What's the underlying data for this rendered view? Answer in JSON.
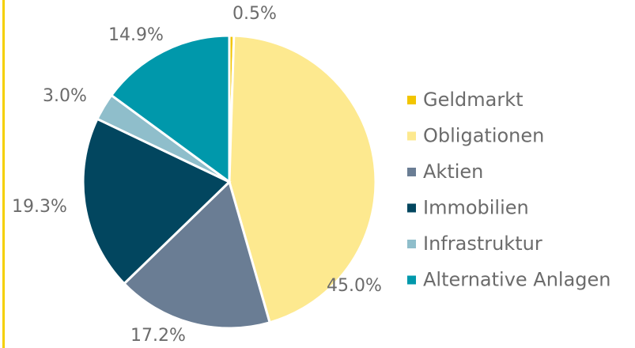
{
  "chart_data": {
    "type": "pie",
    "categories": [
      "Geldmarkt",
      "Obligationen",
      "Aktien",
      "Immobilien",
      "Infrastruktur",
      "Alternative Anlagen"
    ],
    "values": [
      0.5,
      45.0,
      17.2,
      19.3,
      3.0,
      14.9
    ],
    "value_labels": [
      "0.5%",
      "45.0%",
      "17.2%",
      "19.3%",
      "3.0%",
      "14.9%"
    ],
    "colors": [
      "#f2c500",
      "#fde98f",
      "#6a7d94",
      "#02465f",
      "#8fbecb",
      "#0098ab"
    ],
    "legend": "right"
  }
}
